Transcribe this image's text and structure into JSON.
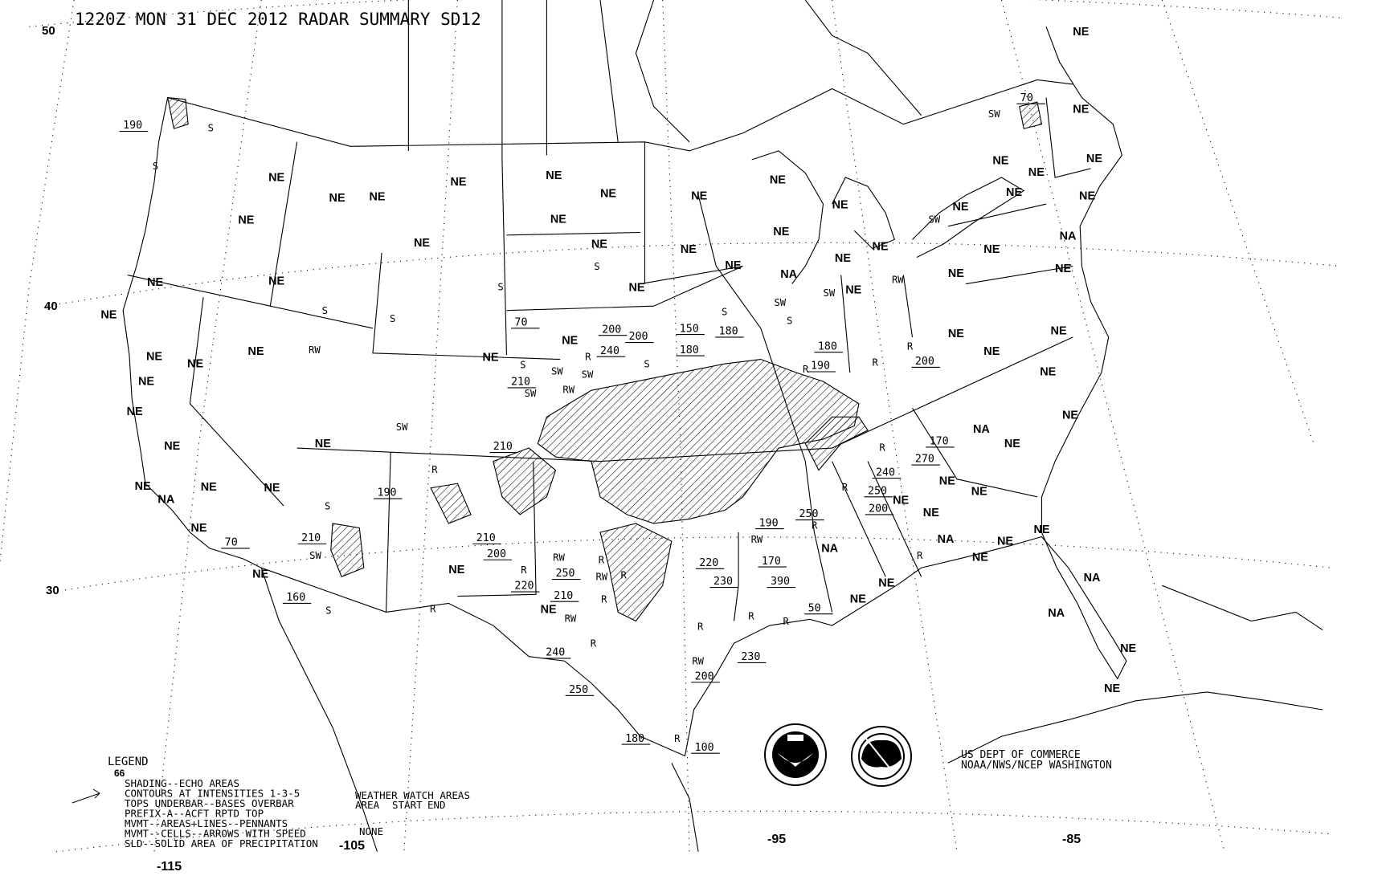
{
  "title": "1220Z MON 31 DEC 2012 RADAR SUMMARY SD12",
  "colors": {
    "background": "#ffffff",
    "ink": "#000000"
  },
  "grid": {
    "lat_labels": [
      "50",
      "40",
      "30"
    ],
    "lon_labels": [
      "-115",
      "-105",
      "-95",
      "-85"
    ]
  },
  "legend": {
    "heading": "LEGEND",
    "sub": "66",
    "lines": [
      "SHADING--ECHO AREAS",
      "CONTOURS AT INTENSITIES 1-3-5",
      "TOPS UNDERBAR--BASES OVERBAR",
      "PREFIX-A--ACFT RPTD TOP",
      "MVMT--AREAS+LINES--PENNANTS",
      "MVMT--CELLS--ARROWS WITH SPEED",
      "SLD--SOLID AREA OF PRECIPITATION"
    ]
  },
  "watch": {
    "heading": "WEATHER WATCH AREAS",
    "columns": [
      "AREA",
      "START",
      "END"
    ],
    "value": "NONE"
  },
  "credits": {
    "line1": "US DEPT OF COMMERCE",
    "line2": "NOAA/NWS/NCEP WASHINGTON",
    "logos": [
      "noaa-seal",
      "national-weather-service-seal"
    ]
  },
  "station_codes": [
    "NE",
    "NE",
    "NE",
    "NE",
    "NE",
    "NE",
    "NE",
    "NE",
    "NE",
    "NA",
    "NE",
    "NE",
    "NE",
    "NE",
    "NE",
    "NE",
    "NE",
    "NE",
    "NE",
    "NE",
    "NE",
    "NE",
    "NE",
    "NE",
    "NE",
    "NE",
    "NE",
    "NE",
    "NE",
    "NE",
    "NA",
    "NE",
    "NE",
    "NE",
    "NE",
    "NE",
    "NE",
    "NE",
    "NE",
    "NE",
    "NE",
    "NE",
    "NE",
    "NE",
    "NE",
    "NE",
    "NE",
    "NE",
    "NE",
    "NA",
    "NE",
    "NE",
    "NE",
    "NE",
    "NE",
    "NE",
    "NA",
    "NE",
    "NE",
    "NE",
    "NE",
    "NE",
    "NA",
    "NE",
    "NE",
    "NE",
    "NA",
    "NE",
    "NE",
    "NA",
    "NA",
    "NE",
    "NE",
    "NE",
    "NE"
  ],
  "echo_tops": [
    "190",
    "70",
    "70",
    "200",
    "240",
    "200",
    "150",
    "180",
    "180",
    "180",
    "190",
    "200",
    "210",
    "210",
    "190",
    "210",
    "70",
    "160",
    "210",
    "200",
    "220",
    "250",
    "210",
    "240",
    "250",
    "180",
    "100",
    "200",
    "230",
    "220",
    "230",
    "170",
    "390",
    "190",
    "250",
    "50",
    "250",
    "240",
    "200",
    "170",
    "270"
  ],
  "precip_types": [
    "S",
    "S",
    "S",
    "RW",
    "S",
    "S",
    "S",
    "S",
    "SW",
    "S",
    "SW",
    "RW",
    "SW",
    "SW",
    "SW",
    "SW",
    "RW",
    "SW",
    "S",
    "S",
    "R",
    "R",
    "R",
    "R",
    "SW",
    "R",
    "S",
    "SW",
    "S",
    "R",
    "R",
    "RW",
    "R",
    "RW",
    "R",
    "RW",
    "R",
    "R",
    "RW",
    "RW",
    "R",
    "R",
    "R",
    "R",
    "R",
    "R",
    "R",
    "R"
  ]
}
